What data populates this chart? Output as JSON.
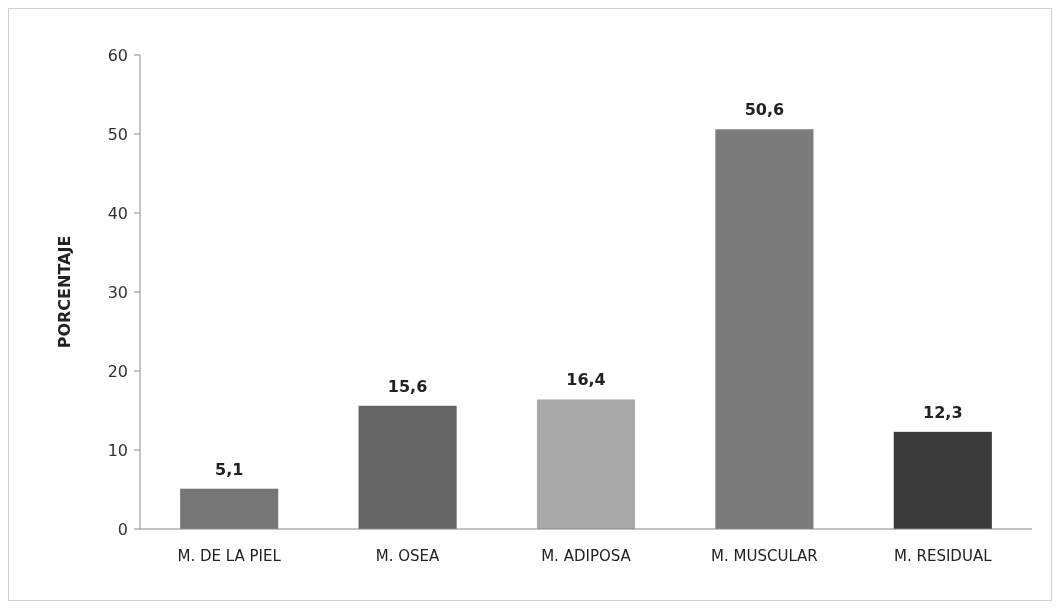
{
  "chart_data": {
    "type": "bar",
    "ylabel": "PORCENTAJE",
    "categories": [
      "M. DE LA PIEL",
      "M. OSEA",
      "M. ADIPOSA",
      "M. MUSCULAR",
      "M. RESIDUAL"
    ],
    "values": [
      5.1,
      15.6,
      16.4,
      50.6,
      12.3
    ],
    "colors": [
      "#767676",
      "#646464",
      "#a9a9a9",
      "#7b7b7b",
      "#3b3b3b"
    ],
    "value_labels": [
      "5,1",
      "15,6",
      "16,4",
      "50,6",
      "12,3"
    ],
    "ylim": [
      0,
      60
    ],
    "yticks": [
      0,
      10,
      20,
      30,
      40,
      50,
      60
    ],
    "grid": false
  }
}
